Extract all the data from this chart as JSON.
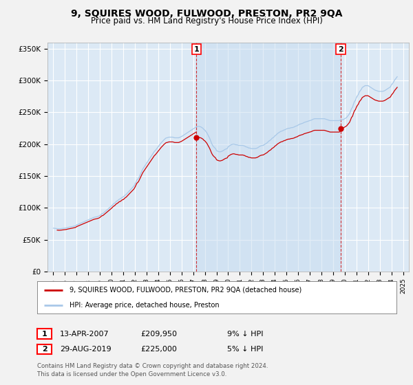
{
  "title": "9, SQUIRES WOOD, FULWOOD, PRESTON, PR2 9QA",
  "subtitle": "Price paid vs. HM Land Registry's House Price Index (HPI)",
  "hpi_color": "#a8c8e8",
  "price_color": "#cc0000",
  "fig_bg_color": "#f0f0f0",
  "plot_bg_color": "#dce9f5",
  "plot_bg_highlight": "#ccddf0",
  "ylim": [
    0,
    360000
  ],
  "yticks": [
    0,
    50000,
    100000,
    150000,
    200000,
    250000,
    300000,
    350000
  ],
  "ytick_labels": [
    "£0",
    "£50K",
    "£100K",
    "£150K",
    "£200K",
    "£250K",
    "£300K",
    "£350K"
  ],
  "xlim_start": 1994.5,
  "xlim_end": 2025.5,
  "marker1_x": 2007.28,
  "marker1_y": 209950,
  "marker1_label": "1",
  "marker1_date": "13-APR-2007",
  "marker1_price": "£209,950",
  "marker1_hpi": "9% ↓ HPI",
  "marker2_x": 2019.66,
  "marker2_y": 225000,
  "marker2_label": "2",
  "marker2_date": "29-AUG-2019",
  "marker2_price": "£225,000",
  "marker2_hpi": "5% ↓ HPI",
  "legend_label_price": "9, SQUIRES WOOD, FULWOOD, PRESTON, PR2 9QA (detached house)",
  "legend_label_hpi": "HPI: Average price, detached house, Preston",
  "footnote": "Contains HM Land Registry data © Crown copyright and database right 2024.\nThis data is licensed under the Open Government Licence v3.0.",
  "hpi_data": {
    "years": [
      1995.0,
      1995.083,
      1995.167,
      1995.25,
      1995.333,
      1995.417,
      1995.5,
      1995.583,
      1995.667,
      1995.75,
      1995.833,
      1995.917,
      1996.0,
      1996.083,
      1996.167,
      1996.25,
      1996.333,
      1996.417,
      1996.5,
      1996.583,
      1996.667,
      1996.75,
      1996.833,
      1996.917,
      1997.0,
      1997.083,
      1997.167,
      1997.25,
      1997.333,
      1997.417,
      1997.5,
      1997.583,
      1997.667,
      1997.75,
      1997.833,
      1997.917,
      1998.0,
      1998.083,
      1998.167,
      1998.25,
      1998.333,
      1998.417,
      1998.5,
      1998.583,
      1998.667,
      1998.75,
      1998.833,
      1998.917,
      1999.0,
      1999.083,
      1999.167,
      1999.25,
      1999.333,
      1999.417,
      1999.5,
      1999.583,
      1999.667,
      1999.75,
      1999.833,
      1999.917,
      2000.0,
      2000.083,
      2000.167,
      2000.25,
      2000.333,
      2000.417,
      2000.5,
      2000.583,
      2000.667,
      2000.75,
      2000.833,
      2000.917,
      2001.0,
      2001.083,
      2001.167,
      2001.25,
      2001.333,
      2001.417,
      2001.5,
      2001.583,
      2001.667,
      2001.75,
      2001.833,
      2001.917,
      2002.0,
      2002.083,
      2002.167,
      2002.25,
      2002.333,
      2002.417,
      2002.5,
      2002.583,
      2002.667,
      2002.75,
      2002.833,
      2002.917,
      2003.0,
      2003.083,
      2003.167,
      2003.25,
      2003.333,
      2003.417,
      2003.5,
      2003.583,
      2003.667,
      2003.75,
      2003.833,
      2003.917,
      2004.0,
      2004.083,
      2004.167,
      2004.25,
      2004.333,
      2004.417,
      2004.5,
      2004.583,
      2004.667,
      2004.75,
      2004.833,
      2004.917,
      2005.0,
      2005.083,
      2005.167,
      2005.25,
      2005.333,
      2005.417,
      2005.5,
      2005.583,
      2005.667,
      2005.75,
      2005.833,
      2005.917,
      2006.0,
      2006.083,
      2006.167,
      2006.25,
      2006.333,
      2006.417,
      2006.5,
      2006.583,
      2006.667,
      2006.75,
      2006.833,
      2006.917,
      2007.0,
      2007.083,
      2007.167,
      2007.25,
      2007.333,
      2007.417,
      2007.5,
      2007.583,
      2007.667,
      2007.75,
      2007.833,
      2007.917,
      2008.0,
      2008.083,
      2008.167,
      2008.25,
      2008.333,
      2008.417,
      2008.5,
      2008.583,
      2008.667,
      2008.75,
      2008.833,
      2008.917,
      2009.0,
      2009.083,
      2009.167,
      2009.25,
      2009.333,
      2009.417,
      2009.5,
      2009.583,
      2009.667,
      2009.75,
      2009.833,
      2009.917,
      2010.0,
      2010.083,
      2010.167,
      2010.25,
      2010.333,
      2010.417,
      2010.5,
      2010.583,
      2010.667,
      2010.75,
      2010.833,
      2010.917,
      2011.0,
      2011.083,
      2011.167,
      2011.25,
      2011.333,
      2011.417,
      2011.5,
      2011.583,
      2011.667,
      2011.75,
      2011.833,
      2011.917,
      2012.0,
      2012.083,
      2012.167,
      2012.25,
      2012.333,
      2012.417,
      2012.5,
      2012.583,
      2012.667,
      2012.75,
      2012.833,
      2012.917,
      2013.0,
      2013.083,
      2013.167,
      2013.25,
      2013.333,
      2013.417,
      2013.5,
      2013.583,
      2013.667,
      2013.75,
      2013.833,
      2013.917,
      2014.0,
      2014.083,
      2014.167,
      2014.25,
      2014.333,
      2014.417,
      2014.5,
      2014.583,
      2014.667,
      2014.75,
      2014.833,
      2014.917,
      2015.0,
      2015.083,
      2015.167,
      2015.25,
      2015.333,
      2015.417,
      2015.5,
      2015.583,
      2015.667,
      2015.75,
      2015.833,
      2015.917,
      2016.0,
      2016.083,
      2016.167,
      2016.25,
      2016.333,
      2016.417,
      2016.5,
      2016.583,
      2016.667,
      2016.75,
      2016.833,
      2016.917,
      2017.0,
      2017.083,
      2017.167,
      2017.25,
      2017.333,
      2017.417,
      2017.5,
      2017.583,
      2017.667,
      2017.75,
      2017.833,
      2017.917,
      2018.0,
      2018.083,
      2018.167,
      2018.25,
      2018.333,
      2018.417,
      2018.5,
      2018.583,
      2018.667,
      2018.75,
      2018.833,
      2018.917,
      2019.0,
      2019.083,
      2019.167,
      2019.25,
      2019.333,
      2019.417,
      2019.5,
      2019.583,
      2019.667,
      2019.75,
      2019.833,
      2019.917,
      2020.0,
      2020.083,
      2020.167,
      2020.25,
      2020.333,
      2020.417,
      2020.5,
      2020.583,
      2020.667,
      2020.75,
      2020.833,
      2020.917,
      2021.0,
      2021.083,
      2021.167,
      2021.25,
      2021.333,
      2021.417,
      2021.5,
      2021.583,
      2021.667,
      2021.75,
      2021.833,
      2021.917,
      2022.0,
      2022.083,
      2022.167,
      2022.25,
      2022.333,
      2022.417,
      2022.5,
      2022.583,
      2022.667,
      2022.75,
      2022.833,
      2022.917,
      2023.0,
      2023.083,
      2023.167,
      2023.25,
      2023.333,
      2023.417,
      2023.5,
      2023.583,
      2023.667,
      2023.75,
      2023.833,
      2023.917,
      2024.0,
      2024.083,
      2024.167,
      2024.25,
      2024.333,
      2024.417,
      2024.5
    ],
    "values": [
      68000,
      67800,
      67600,
      67500,
      67300,
      67100,
      67000,
      67100,
      67300,
      67500,
      67700,
      67900,
      68000,
      68300,
      68700,
      69000,
      69400,
      69700,
      70000,
      70300,
      70700,
      71000,
      71400,
      71800,
      73000,
      73700,
      74300,
      75000,
      75700,
      76300,
      77000,
      77700,
      78300,
      79000,
      79700,
      80300,
      81000,
      81700,
      82300,
      83000,
      83700,
      84300,
      85000,
      85300,
      85700,
      86000,
      86500,
      87000,
      88000,
      89300,
      90700,
      91000,
      92300,
      93700,
      95000,
      96300,
      97700,
      99000,
      100300,
      101700,
      103000,
      104700,
      106300,
      107000,
      108700,
      110300,
      111000,
      112300,
      113700,
      114000,
      115300,
      116700,
      117000,
      118500,
      120000,
      121000,
      122700,
      124300,
      126000,
      127700,
      129300,
      131000,
      132700,
      134300,
      137000,
      140300,
      143700,
      145000,
      147300,
      150700,
      154000,
      157300,
      160700,
      163000,
      165300,
      167700,
      170000,
      172300,
      174700,
      177000,
      179300,
      181700,
      184000,
      186300,
      188700,
      190000,
      192000,
      194000,
      196000,
      198000,
      200000,
      202000,
      203700,
      205300,
      207000,
      208300,
      209700,
      210000,
      210500,
      211000,
      211000,
      211000,
      211000,
      211000,
      210500,
      210000,
      210000,
      210000,
      210000,
      210000,
      210700,
      211300,
      212000,
      213000,
      214000,
      215000,
      216000,
      217000,
      218000,
      219000,
      220000,
      221000,
      222000,
      223000,
      224000,
      225000,
      226000,
      227000,
      227500,
      228000,
      228000,
      227500,
      227000,
      226000,
      225000,
      223000,
      222000,
      220000,
      218000,
      215000,
      212000,
      209000,
      205000,
      201000,
      198000,
      196000,
      194500,
      193000,
      190000,
      189000,
      188500,
      188000,
      188000,
      188500,
      189000,
      190000,
      191000,
      192000,
      192500,
      193000,
      196000,
      197000,
      198000,
      199000,
      199500,
      200000,
      200000,
      199500,
      199000,
      199000,
      198500,
      198000,
      198000,
      198000,
      198000,
      198000,
      197500,
      197000,
      196000,
      195500,
      195000,
      194000,
      194000,
      193500,
      193000,
      193000,
      193000,
      193000,
      193000,
      193500,
      194000,
      195000,
      196000,
      197000,
      197500,
      198000,
      198000,
      199000,
      200000,
      201000,
      202000,
      203500,
      205000,
      206000,
      207000,
      209000,
      210000,
      211000,
      213000,
      214000,
      215500,
      217000,
      218000,
      219000,
      220000,
      220500,
      221000,
      222000,
      222500,
      223000,
      224000,
      224500,
      225000,
      225000,
      225500,
      226000,
      226000,
      226500,
      227000,
      228000,
      228500,
      229000,
      230000,
      231000,
      231500,
      232000,
      232500,
      233000,
      234000,
      234500,
      235000,
      235500,
      236000,
      236500,
      237000,
      237500,
      238000,
      239000,
      239500,
      240000,
      240000,
      240000,
      240000,
      240000,
      240000,
      240000,
      240000,
      240000,
      240000,
      240000,
      239500,
      239000,
      238500,
      238000,
      237500,
      237000,
      237000,
      237000,
      237000,
      237000,
      237000,
      237000,
      237000,
      237000,
      237000,
      237500,
      238000,
      238000,
      238500,
      239000,
      240000,
      241000,
      242000,
      244000,
      246000,
      248000,
      252000,
      256000,
      258000,
      263000,
      267000,
      269000,
      273000,
      276000,
      278000,
      282000,
      284000,
      286000,
      289000,
      290000,
      291000,
      292000,
      292000,
      292000,
      292000,
      291000,
      290000,
      289000,
      288000,
      287000,
      286000,
      285000,
      284500,
      284000,
      283500,
      283000,
      283000,
      283000,
      283000,
      283000,
      283500,
      284000,
      285000,
      286000,
      287000,
      288000,
      289000,
      290000,
      293000,
      295000,
      297000,
      300000,
      302000,
      304000,
      306000
    ]
  },
  "sale1_year": 1995.3,
  "sale1_price": 65000,
  "sale2_year": 2007.28,
  "sale2_price": 209950,
  "sale3_year": 2019.66,
  "sale3_price": 225000
}
